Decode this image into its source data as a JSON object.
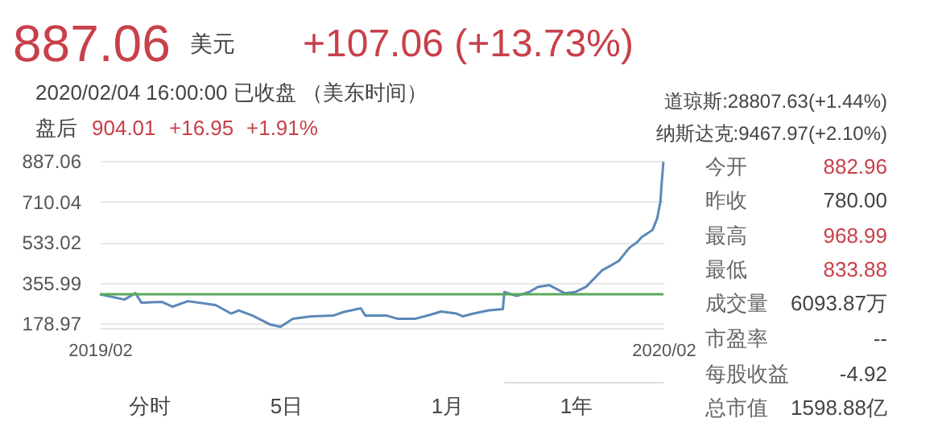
{
  "chart_data": {
    "type": "line",
    "x": [
      "2019-02-04",
      "2019-02-20",
      "2019-02-27",
      "2019-03-03",
      "2019-03-16",
      "2019-03-23",
      "2019-04-02",
      "2019-04-20",
      "2019-04-30",
      "2019-05-05",
      "2019-05-14",
      "2019-05-25",
      "2019-06-01",
      "2019-06-09",
      "2019-06-21",
      "2019-07-05",
      "2019-07-12",
      "2019-07-23",
      "2019-07-26",
      "2019-08-09",
      "2019-08-16",
      "2019-08-27",
      "2019-09-06",
      "2019-09-13",
      "2019-09-23",
      "2019-09-27",
      "2019-10-04",
      "2019-10-14",
      "2019-10-23",
      "2019-10-24",
      "2019-11-01",
      "2019-11-09",
      "2019-11-15",
      "2019-11-22",
      "2019-12-02",
      "2019-12-09",
      "2019-12-16",
      "2019-12-26",
      "2020-01-06",
      "2020-01-13",
      "2020-01-18",
      "2020-01-21",
      "2020-01-25",
      "2020-01-28",
      "2020-01-31",
      "2020-02-02",
      "2020-02-03",
      "2020-02-04"
    ],
    "series": [
      {
        "color": "#5b88b8",
        "values": [
          305,
          282,
          310,
          268,
          272,
          251,
          275,
          258,
          221,
          235,
          212,
          174,
          163,
          198,
          209,
          212,
          228,
          244,
          212,
          212,
          198,
          198,
          216,
          230,
          221,
          209,
          221,
          235,
          240,
          315,
          298,
          315,
          338,
          345,
          310,
          315,
          338,
          408,
          450,
          508,
          532,
          555,
          572,
          586,
          637,
          707,
          801,
          882
        ]
      }
    ],
    "xlim": [
      "2019-02-04",
      "2020-02-04"
    ],
    "xticks": [
      {
        "value": "2019-02-04",
        "label": "2019/02"
      },
      {
        "value": "2020-02-04",
        "label": "2020/02"
      }
    ],
    "ylim": [
      158,
      887.06
    ],
    "yticks": [
      178.97,
      355.99,
      533.02,
      710.04,
      887.06
    ],
    "grid": "y",
    "ref_lines": [
      {
        "axis": "y",
        "value": 305,
        "color": "#5aaa5a"
      }
    ],
    "annotations": [
      "887.06",
      "美元",
      "+107.06 (+13.73%)",
      "2020/02/04 16:00:00  已收盘  （美东时间）",
      "盘后",
      "904.01",
      "+16.95",
      "+1.91%",
      "道琼斯:28807.63(+1.44%)",
      "纳斯达克:9467.97(+2.10%)",
      "今开",
      "882.96",
      "昨收",
      "780.00",
      "最高",
      "968.99",
      "最低",
      "833.88",
      "成交量",
      "6093.87万",
      "市盈率",
      "--",
      "每股收益",
      "-4.92",
      "总市值",
      "1598.88亿",
      "分时",
      "5日",
      "1月",
      "1年"
    ]
  }
}
